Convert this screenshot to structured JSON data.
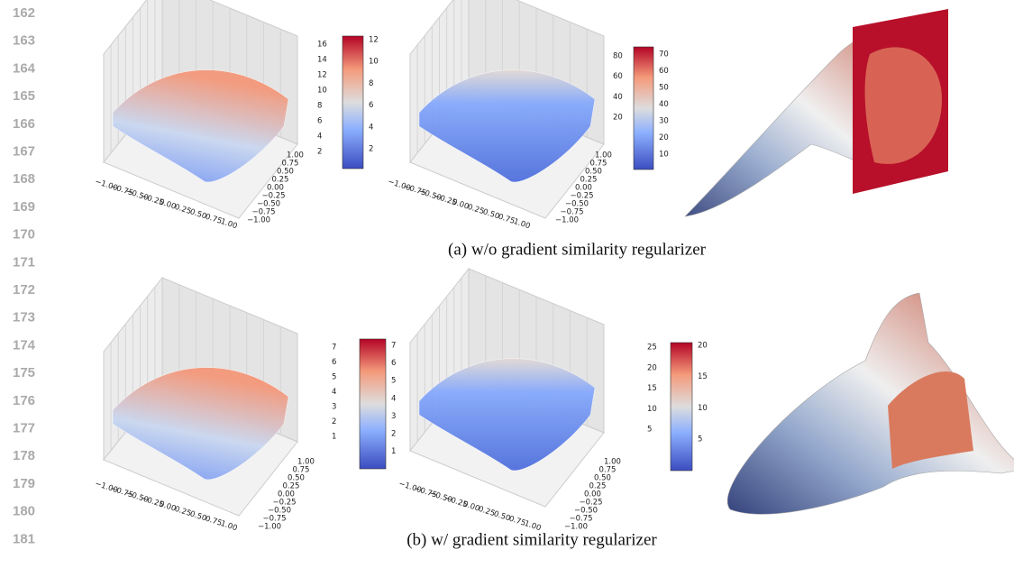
{
  "line_numbers": [
    "162",
    "163",
    "164",
    "165",
    "166",
    "167",
    "168",
    "169",
    "170",
    "171",
    "172",
    "173",
    "174",
    "175",
    "176",
    "177",
    "178",
    "179",
    "180",
    "181"
  ],
  "rows": [
    {
      "caption": "(a)  w/o gradient similarity regularizer",
      "plots": [
        {
          "z_ticks": [
            "16",
            "14",
            "12",
            "10",
            "8",
            "6",
            "4",
            "2"
          ],
          "colorbar_ticks": [
            "12",
            "10",
            "8",
            "6",
            "4",
            "2"
          ],
          "x_ticks": [
            "−1.00",
            "−0.75",
            "−0.50",
            "−0.25",
            "0.00",
            "0.25",
            "0.50",
            "0.75",
            "1.00"
          ],
          "y_ticks": [
            "1.00",
            "0.75",
            "0.50",
            "0.25",
            "0.00",
            "−0.25",
            "−0.50",
            "−0.75",
            "−1.00"
          ]
        },
        {
          "z_ticks": [
            "80",
            "60",
            "40",
            "20"
          ],
          "colorbar_ticks": [
            "70",
            "60",
            "50",
            "40",
            "30",
            "20",
            "10"
          ],
          "x_ticks": [
            "−1.00",
            "−0.75",
            "−0.50",
            "−0.25",
            "0.00",
            "0.25",
            "0.50",
            "0.75",
            "1.00"
          ],
          "y_ticks": [
            "1.00",
            "0.75",
            "0.50",
            "0.25",
            "0.00",
            "−0.25",
            "−0.50",
            "−0.75",
            "−1.00"
          ]
        }
      ]
    },
    {
      "caption": "(b)  w/ gradient similarity regularizer",
      "plots": [
        {
          "z_ticks": [
            "7",
            "6",
            "5",
            "4",
            "3",
            "2",
            "1"
          ],
          "colorbar_ticks": [
            "7",
            "6",
            "5",
            "4",
            "3",
            "2",
            "1"
          ],
          "x_ticks": [
            "−1.00",
            "−0.75",
            "−0.50",
            "−0.25",
            "0.00",
            "0.25",
            "0.50",
            "0.75",
            "1.00"
          ],
          "y_ticks": [
            "1.00",
            "0.75",
            "0.50",
            "0.25",
            "0.00",
            "−0.25",
            "−0.50",
            "−0.75",
            "−1.00"
          ]
        },
        {
          "z_ticks": [
            "25",
            "20",
            "15",
            "10",
            "5"
          ],
          "colorbar_ticks": [
            "20",
            "15",
            "10",
            "5"
          ],
          "x_ticks": [
            "−1.00",
            "−0.75",
            "−0.50",
            "−0.25",
            "0.00",
            "0.25",
            "0.50",
            "0.75",
            "1.00"
          ],
          "y_ticks": [
            "1.00",
            "0.75",
            "0.50",
            "0.25",
            "0.00",
            "−0.25",
            "−0.50",
            "−0.75",
            "−1.00"
          ]
        }
      ]
    }
  ]
}
